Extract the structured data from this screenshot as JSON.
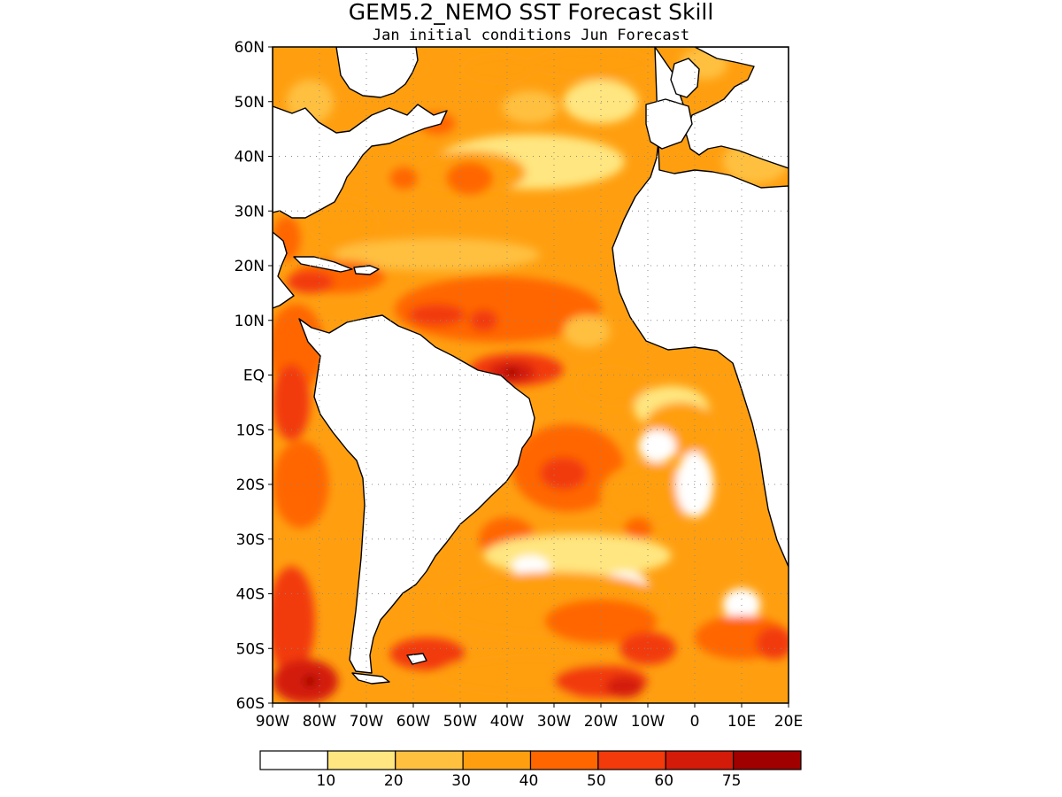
{
  "figure": {
    "title": "GEM5.2_NEMO SST Forecast Skill",
    "subtitle": "Jan initial conditions  Jun Forecast"
  },
  "map": {
    "lon_range": [
      -90,
      20
    ],
    "lat_range": [
      -60,
      60
    ],
    "grid": "dotted",
    "lat_ticks": [
      {
        "value": 60,
        "label": "60N"
      },
      {
        "value": 50,
        "label": "50N"
      },
      {
        "value": 40,
        "label": "40N"
      },
      {
        "value": 30,
        "label": "30N"
      },
      {
        "value": 20,
        "label": "20N"
      },
      {
        "value": 10,
        "label": "10N"
      },
      {
        "value": 0,
        "label": "EQ"
      },
      {
        "value": -10,
        "label": "10S"
      },
      {
        "value": -20,
        "label": "20S"
      },
      {
        "value": -30,
        "label": "30S"
      },
      {
        "value": -40,
        "label": "40S"
      },
      {
        "value": -50,
        "label": "50S"
      },
      {
        "value": -60,
        "label": "60S"
      }
    ],
    "lon_ticks": [
      {
        "value": -90,
        "label": "90W"
      },
      {
        "value": -80,
        "label": "80W"
      },
      {
        "value": -70,
        "label": "70W"
      },
      {
        "value": -60,
        "label": "60W"
      },
      {
        "value": -50,
        "label": "50W"
      },
      {
        "value": -40,
        "label": "40W"
      },
      {
        "value": -30,
        "label": "30W"
      },
      {
        "value": -20,
        "label": "20W"
      },
      {
        "value": -10,
        "label": "10W"
      },
      {
        "value": 0,
        "label": "0"
      },
      {
        "value": 10,
        "label": "10E"
      },
      {
        "value": 20,
        "label": "20E"
      }
    ],
    "land_color": "#ffffff",
    "coast_color": "#000000"
  },
  "colorbar": {
    "colors": [
      "#ffffff",
      "#ffe680",
      "#ffc040",
      "#ff9f10",
      "#ff6600",
      "#f23a0a",
      "#d41a08",
      "#a00000"
    ],
    "labels": [
      "10",
      "20",
      "30",
      "40",
      "50",
      "60",
      "75"
    ]
  },
  "skill_regions": [
    {
      "level": 2,
      "lon": -82,
      "lat": 50,
      "rx": 5,
      "ry": 4
    },
    {
      "level": 3,
      "lon": -62,
      "lat": 45,
      "rx": 6,
      "ry": 3
    },
    {
      "level": 4,
      "lon": -55,
      "lat": 46,
      "rx": 4,
      "ry": 2
    },
    {
      "level": 3,
      "lon": -42,
      "lat": 56,
      "rx": 8,
      "ry": 3
    },
    {
      "level": 3,
      "lon": -22,
      "lat": 57,
      "rx": 14,
      "ry": 3
    },
    {
      "level": 2,
      "lon": -35,
      "lat": 49,
      "rx": 6,
      "ry": 3
    },
    {
      "level": 1,
      "lon": -20,
      "lat": 50,
      "rx": 8,
      "ry": 4
    },
    {
      "level": 2,
      "lon": 2,
      "lat": 57,
      "rx": 5,
      "ry": 3
    },
    {
      "level": 2,
      "lon": 13,
      "lat": 39,
      "rx": 7,
      "ry": 4
    },
    {
      "level": 1,
      "lon": -35,
      "lat": 39,
      "rx": 20,
      "ry": 5
    },
    {
      "level": 3,
      "lon": -48,
      "lat": 37,
      "rx": 12,
      "ry": 4
    },
    {
      "level": 4,
      "lon": -48,
      "lat": 36,
      "rx": 5,
      "ry": 3
    },
    {
      "level": 4,
      "lon": -62,
      "lat": 36,
      "rx": 3,
      "ry": 2
    },
    {
      "level": 3,
      "lon": -75,
      "lat": 28,
      "rx": 8,
      "ry": 5
    },
    {
      "level": 4,
      "lon": -87,
      "lat": 25,
      "rx": 3,
      "ry": 4
    },
    {
      "level": 2,
      "lon": -55,
      "lat": 22,
      "rx": 22,
      "ry": 3
    },
    {
      "level": 4,
      "lon": -76,
      "lat": 18,
      "rx": 10,
      "ry": 3
    },
    {
      "level": 5,
      "lon": -82,
      "lat": 17,
      "rx": 5,
      "ry": 2
    },
    {
      "level": 4,
      "lon": -42,
      "lat": 12,
      "rx": 22,
      "ry": 6
    },
    {
      "level": 5,
      "lon": -55,
      "lat": 11,
      "rx": 6,
      "ry": 2
    },
    {
      "level": 5,
      "lon": -45,
      "lat": 10,
      "rx": 3,
      "ry": 2
    },
    {
      "level": 2,
      "lon": -23,
      "lat": 8,
      "rx": 5,
      "ry": 3
    },
    {
      "level": 5,
      "lon": -38,
      "lat": 1,
      "rx": 10,
      "ry": 3
    },
    {
      "level": 6,
      "lon": -39,
      "lat": 0.5,
      "rx": 5,
      "ry": 2
    },
    {
      "level": 7,
      "lon": -39,
      "lat": 0.5,
      "rx": 1.5,
      "ry": 0.8
    },
    {
      "level": 3,
      "lon": -18,
      "lat": -2,
      "rx": 8,
      "ry": 4
    },
    {
      "level": 1,
      "lon": -5,
      "lat": -6,
      "rx": 8,
      "ry": 4
    },
    {
      "level": 3,
      "lon": -3,
      "lat": -10,
      "rx": 8,
      "ry": 5
    },
    {
      "level": 0,
      "lon": -8,
      "lat": -13,
      "rx": 4,
      "ry": 3
    },
    {
      "level": 4,
      "lon": -27,
      "lat": -17,
      "rx": 12,
      "ry": 8
    },
    {
      "level": 5,
      "lon": -28,
      "lat": -18,
      "rx": 5,
      "ry": 3
    },
    {
      "level": 3,
      "lon": -10,
      "lat": -22,
      "rx": 10,
      "ry": 6
    },
    {
      "level": 0,
      "lon": 0,
      "lat": -20,
      "rx": 4,
      "ry": 6
    },
    {
      "level": 4,
      "lon": -40,
      "lat": -30,
      "rx": 6,
      "ry": 4
    },
    {
      "level": 4,
      "lon": -12,
      "lat": -28,
      "rx": 3,
      "ry": 2
    },
    {
      "level": 1,
      "lon": -25,
      "lat": -33,
      "rx": 20,
      "ry": 4
    },
    {
      "level": 0,
      "lon": -35,
      "lat": -35,
      "rx": 4,
      "ry": 2
    },
    {
      "level": 0,
      "lon": -15,
      "lat": -38,
      "rx": 5,
      "ry": 2
    },
    {
      "level": 3,
      "lon": -30,
      "lat": -42,
      "rx": 25,
      "ry": 6
    },
    {
      "level": 4,
      "lon": -20,
      "lat": -45,
      "rx": 12,
      "ry": 4
    },
    {
      "level": 0,
      "lon": 10,
      "lat": -42,
      "rx": 4,
      "ry": 3
    },
    {
      "level": 4,
      "lon": 10,
      "lat": -48,
      "rx": 10,
      "ry": 4
    },
    {
      "level": 5,
      "lon": -10,
      "lat": -50,
      "rx": 6,
      "ry": 3
    },
    {
      "level": 5,
      "lon": 17,
      "lat": -49,
      "rx": 4,
      "ry": 3
    },
    {
      "level": 5,
      "lon": -57,
      "lat": -51,
      "rx": 8,
      "ry": 3
    },
    {
      "level": 3,
      "lon": -35,
      "lat": -55,
      "rx": 20,
      "ry": 4
    },
    {
      "level": 5,
      "lon": -20,
      "lat": -56,
      "rx": 10,
      "ry": 3
    },
    {
      "level": 6,
      "lon": -15,
      "lat": -57,
      "rx": 4,
      "ry": 2
    },
    {
      "level": 4,
      "lon": -85,
      "lat": 5,
      "rx": 6,
      "ry": 8
    },
    {
      "level": 5,
      "lon": -86,
      "lat": -5,
      "rx": 4,
      "ry": 7
    },
    {
      "level": 4,
      "lon": -84,
      "lat": -20,
      "rx": 6,
      "ry": 8
    },
    {
      "level": 5,
      "lon": -86,
      "lat": -45,
      "rx": 5,
      "ry": 10
    },
    {
      "level": 6,
      "lon": -83,
      "lat": -56,
      "rx": 7,
      "ry": 4
    },
    {
      "level": 7,
      "lon": -82,
      "lat": -56,
      "rx": 1.5,
      "ry": 1
    }
  ]
}
